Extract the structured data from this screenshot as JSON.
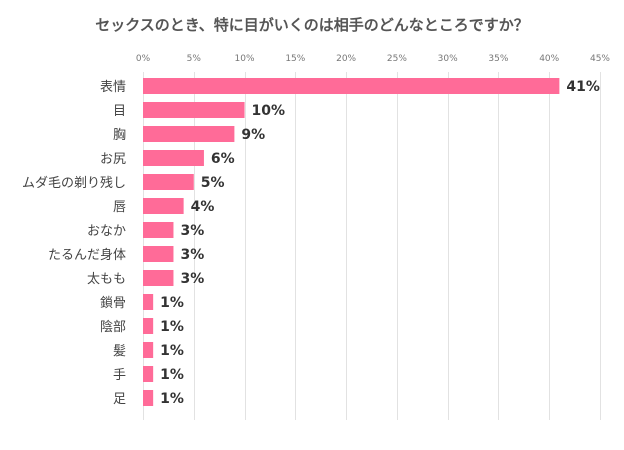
{
  "chart_data": {
    "type": "bar",
    "orientation": "horizontal",
    "title": "セックスのとき、特に目がいくのは相手のどんなところですか？",
    "categories": [
      "表情",
      "目",
      "胸",
      "お尻",
      "ムダ毛の剃り残し",
      "唇",
      "おなか",
      "たるんだ身体",
      "太もも",
      "鎖骨",
      "陰部",
      "髪",
      "手",
      "足"
    ],
    "values": [
      41,
      10,
      9,
      6,
      5,
      4,
      3,
      3,
      3,
      1,
      1,
      1,
      1,
      1
    ],
    "value_labels": [
      "41%",
      "10%",
      "9%",
      "6%",
      "5%",
      "4%",
      "3%",
      "3%",
      "3%",
      "1%",
      "1%",
      "1%",
      "1%",
      "1%"
    ],
    "xticks": [
      0,
      5,
      10,
      15,
      20,
      25,
      30,
      35,
      40,
      45
    ],
    "xtick_labels": [
      "0%",
      "5%",
      "10%",
      "15%",
      "20%",
      "25%",
      "30%",
      "35%",
      "40%",
      "45%"
    ],
    "xlim": [
      0,
      45
    ],
    "xlabel": "",
    "ylabel": "",
    "grid": true,
    "legend": "none",
    "colors": {
      "bar": "#ff6b98",
      "grid": "#e2e2e2"
    }
  }
}
